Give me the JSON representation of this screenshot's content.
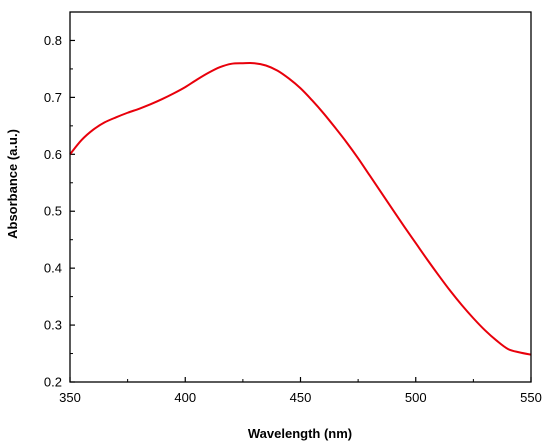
{
  "chart_data": {
    "type": "line",
    "xlabel": "Wavelength (nm)",
    "ylabel": "Absorbance (a.u.)",
    "xlim": [
      350,
      550
    ],
    "ylim": [
      0.2,
      0.85
    ],
    "x_ticks": [
      350,
      400,
      450,
      500,
      550
    ],
    "y_ticks": [
      0.2,
      0.3,
      0.4,
      0.5,
      0.6,
      0.7,
      0.8
    ],
    "grid": false,
    "legend": "none",
    "series": [
      {
        "color": "#e8000b",
        "x": [
          350,
          355,
          360,
          365,
          370,
          375,
          380,
          385,
          390,
          395,
          400,
          405,
          410,
          415,
          420,
          425,
          430,
          435,
          440,
          445,
          450,
          455,
          460,
          465,
          470,
          475,
          480,
          485,
          490,
          495,
          500,
          505,
          510,
          515,
          520,
          525,
          530,
          535,
          540,
          545,
          550
        ],
        "y": [
          0.6,
          0.625,
          0.643,
          0.656,
          0.665,
          0.673,
          0.68,
          0.688,
          0.697,
          0.707,
          0.718,
          0.731,
          0.743,
          0.753,
          0.759,
          0.76,
          0.76,
          0.756,
          0.747,
          0.733,
          0.716,
          0.695,
          0.672,
          0.647,
          0.621,
          0.593,
          0.563,
          0.533,
          0.503,
          0.473,
          0.444,
          0.415,
          0.387,
          0.36,
          0.335,
          0.312,
          0.291,
          0.273,
          0.258,
          0.252,
          0.248
        ]
      }
    ]
  }
}
